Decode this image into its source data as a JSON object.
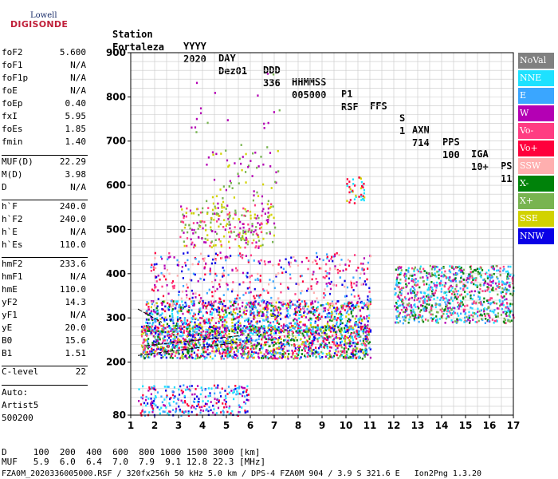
{
  "logo": {
    "top": "Lowell",
    "bottom": "DIGISONDE"
  },
  "header": {
    "labels": [
      "Station",
      "YYYY",
      "DAY",
      "DDD",
      "HHMMSS",
      "P1",
      "FFS",
      "S",
      "AXN",
      "PPS",
      "IGA",
      "PS"
    ],
    "values": [
      "Fortaleza",
      "2020",
      "Dez01",
      "336",
      "005000",
      "RSF",
      "",
      "1",
      "714",
      "100",
      "10+",
      "11"
    ]
  },
  "params": [
    {
      "name": "foF2",
      "value": "5.600"
    },
    {
      "name": "foF1",
      "value": "N/A"
    },
    {
      "name": "foF1p",
      "value": "N/A"
    },
    {
      "name": "foE",
      "value": "N/A"
    },
    {
      "name": "foEp",
      "value": "0.40"
    },
    {
      "name": "fxI",
      "value": "5.95"
    },
    {
      "name": "foEs",
      "value": "1.85"
    },
    {
      "name": "fmin",
      "value": "1.40"
    },
    {
      "name": "MUF(D)",
      "value": "22.29"
    },
    {
      "name": "M(D)",
      "value": "3.98"
    },
    {
      "name": "D",
      "value": "N/A"
    },
    {
      "name": "h`F",
      "value": "240.0"
    },
    {
      "name": "h`F2",
      "value": "240.0"
    },
    {
      "name": "h`E",
      "value": "N/A"
    },
    {
      "name": "h`Es",
      "value": "110.0"
    },
    {
      "name": "hmF2",
      "value": "233.6"
    },
    {
      "name": "hmF1",
      "value": "N/A"
    },
    {
      "name": "hmE",
      "value": "110.0"
    },
    {
      "name": "yF2",
      "value": "14.3"
    },
    {
      "name": "yF1",
      "value": "N/A"
    },
    {
      "name": "yE",
      "value": "20.0"
    },
    {
      "name": "B0",
      "value": "15.6"
    },
    {
      "name": "B1",
      "value": "1.51"
    },
    {
      "name": "C-level",
      "value": "22"
    }
  ],
  "tail": {
    "line1": "Auto:",
    "line2": "Artist5",
    "line3": "500200"
  },
  "legend": [
    {
      "label": "NoVal",
      "color": "#808080"
    },
    {
      "label": "NNE",
      "color": "#1ee1ff"
    },
    {
      "label": "E",
      "color": "#3aa6ff"
    },
    {
      "label": "W",
      "color": "#b400b4"
    },
    {
      "label": "Vo-",
      "color": "#ff3c82"
    },
    {
      "label": "Vo+",
      "color": "#ff003c"
    },
    {
      "label": "SSW",
      "color": "#ffafaf"
    },
    {
      "label": "X-",
      "color": "#00820a"
    },
    {
      "label": "X+",
      "color": "#78b450"
    },
    {
      "label": "SSE",
      "color": "#d2d200"
    },
    {
      "label": "NNW",
      "color": "#0a00e6"
    }
  ],
  "bottom": {
    "d_line": "D     100  200  400  600  800 1000 1500 3000 [km]",
    "muf_line": "MUF   5.9  6.0  6.4  7.0  7.9  9.1 12.8 22.3 [MHz]",
    "footer": "FZA0M_2020336005000.RSF / 320fx256h 50 kHz 5.0 km / DPS-4 FZA0M 904 / 3.9 S 321.6 E   Ion2Png 1.3.20"
  },
  "chart_data": {
    "type": "scatter",
    "xlim": [
      1,
      17
    ],
    "ylim": [
      80,
      900
    ],
    "x_ticks": [
      1,
      2,
      3,
      4,
      5,
      6,
      7,
      8,
      9,
      10,
      11,
      12,
      13,
      14,
      15,
      16,
      17
    ],
    "y_ticks": [
      80,
      200,
      300,
      400,
      500,
      600,
      700,
      800,
      900
    ],
    "x_minor_step": 0.5,
    "y_minor_step": 20,
    "grid": true,
    "clusters": [
      {
        "fmin": 1.3,
        "fmax": 5.9,
        "hmin": 80,
        "hmax": 150,
        "n": 260,
        "colors": [
          "#3aa6ff",
          "#1ee1ff",
          "#b400b4",
          "#ff003c",
          "#0a00e6"
        ]
      },
      {
        "fmin": 1.4,
        "fmax": 11.0,
        "hmin": 210,
        "hmax": 285,
        "n": 1600,
        "colors": [
          "#ff003c",
          "#ff3c82",
          "#00820a",
          "#78b450",
          "#d2d200",
          "#1ee1ff",
          "#3aa6ff",
          "#0a00e6",
          "#b400b4"
        ]
      },
      {
        "fmin": 1.6,
        "fmax": 11.0,
        "hmin": 270,
        "hmax": 340,
        "n": 900,
        "colors": [
          "#b400b4",
          "#3aa6ff",
          "#1ee1ff",
          "#0a00e6",
          "#ff003c",
          "#00820a",
          "#d2d200"
        ]
      },
      {
        "fmin": 1.8,
        "fmax": 11.0,
        "hmin": 320,
        "hmax": 450,
        "n": 500,
        "colors": [
          "#b400b4",
          "#ff003c",
          "#ff3c82",
          "#0a00e6",
          "#3aa6ff",
          "#ffafaf"
        ]
      },
      {
        "fmin": 3.0,
        "fmax": 7.0,
        "hmin": 460,
        "hmax": 560,
        "n": 260,
        "colors": [
          "#d2d200",
          "#78b450",
          "#b400b4",
          "#ff3c82"
        ]
      },
      {
        "fmin": 4.0,
        "fmax": 7.2,
        "hmin": 560,
        "hmax": 680,
        "n": 60,
        "colors": [
          "#78b450",
          "#b400b4",
          "#d2d200"
        ]
      },
      {
        "fmin": 10.0,
        "fmax": 10.8,
        "hmin": 560,
        "hmax": 620,
        "n": 40,
        "colors": [
          "#d2d200",
          "#ff003c",
          "#1ee1ff"
        ]
      },
      {
        "fmin": 12.0,
        "fmax": 17.0,
        "hmin": 290,
        "hmax": 420,
        "n": 900,
        "colors": [
          "#1ee1ff",
          "#3aa6ff",
          "#ff3c82",
          "#b400b4",
          "#00820a",
          "#78b450"
        ]
      },
      {
        "fmin": 3.5,
        "fmax": 7.2,
        "hmin": 640,
        "hmax": 860,
        "n": 25,
        "colors": [
          "#78b450",
          "#b400b4"
        ]
      }
    ],
    "profile_lines": [
      {
        "x": [
          1.3,
          5.6
        ],
        "y": [
          215,
          245
        ]
      },
      {
        "x": [
          1.6,
          5.6
        ],
        "y": [
          237,
          260
        ]
      },
      {
        "x": [
          1.3,
          2.3
        ],
        "y": [
          320,
          290
        ]
      }
    ]
  }
}
